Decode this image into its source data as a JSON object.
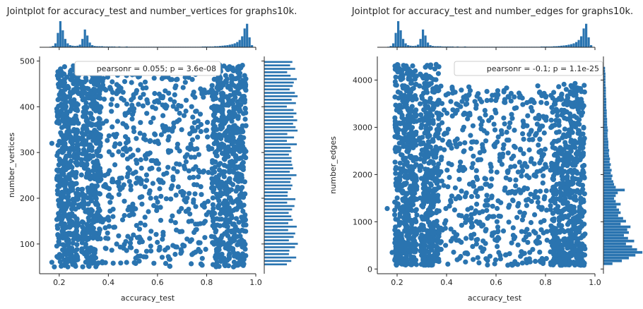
{
  "chart_data": [
    {
      "type": "scatter",
      "subtype": "jointplot",
      "title": "Jointplot for accuracy_test and number_vertices for graphs10k.",
      "xlabel": "accuracy_test",
      "ylabel": "number_vertices",
      "xlim": [
        0.12,
        1.0
      ],
      "ylim": [
        35,
        510
      ],
      "xticks": [
        "0.2",
        "0.4",
        "0.6",
        "0.8",
        "1.0"
      ],
      "yticks": [
        "100",
        "200",
        "300",
        "400",
        "500"
      ],
      "annotation": "pearsonr = 0.055; p = 3.6e-08",
      "color": "#2a74b0",
      "marginal_x_hist": {
        "x_start": 0.16,
        "bin_width": 0.01,
        "heights": [
          0.02,
          0.05,
          0.15,
          0.55,
          1.0,
          0.65,
          0.32,
          0.15,
          0.08,
          0.06,
          0.05,
          0.06,
          0.1,
          0.32,
          0.68,
          0.45,
          0.18,
          0.08,
          0.05,
          0.04,
          0.04,
          0.04,
          0.03,
          0.03,
          0.03,
          0.03,
          0.03,
          0.02,
          0.03,
          0.02,
          0.02,
          0.03,
          0.02,
          0.02,
          0.02,
          0.02,
          0.02,
          0.02,
          0.02,
          0.02,
          0.02,
          0.02,
          0.02,
          0.02,
          0.02,
          0.02,
          0.02,
          0.02,
          0.02,
          0.02,
          0.02,
          0.02,
          0.02,
          0.02,
          0.02,
          0.02,
          0.02,
          0.02,
          0.02,
          0.02,
          0.02,
          0.02,
          0.03,
          0.03,
          0.03,
          0.03,
          0.03,
          0.04,
          0.04,
          0.05,
          0.06,
          0.07,
          0.08,
          0.1,
          0.12,
          0.15,
          0.2,
          0.28,
          0.42,
          0.72,
          0.9,
          0.38,
          0.08
        ]
      },
      "marginal_y_hist": {
        "y_start": 50,
        "bin_width": 7.5,
        "min": 0.55,
        "max": 0.82,
        "bars": 60
      }
    },
    {
      "type": "scatter",
      "subtype": "jointplot",
      "title": "Jointplot for accuracy_test and number_edges for graphs10k.",
      "xlabel": "accuracy_test",
      "ylabel": "number_edges",
      "xlim": [
        0.12,
        1.0
      ],
      "ylim": [
        -100,
        4500
      ],
      "xticks": [
        "0.2",
        "0.4",
        "0.6",
        "0.8",
        "1.0"
      ],
      "yticks": [
        "0",
        "1000",
        "2000",
        "3000",
        "4000"
      ],
      "annotation": "pearsonr = -0.1; p = 1.1e-25",
      "color": "#2a74b0",
      "marginal_x_hist": {
        "x_start": 0.16,
        "bin_width": 0.01,
        "heights": [
          0.02,
          0.05,
          0.15,
          0.55,
          1.0,
          0.65,
          0.32,
          0.15,
          0.08,
          0.06,
          0.05,
          0.06,
          0.1,
          0.32,
          0.68,
          0.45,
          0.18,
          0.08,
          0.05,
          0.04,
          0.04,
          0.04,
          0.03,
          0.03,
          0.03,
          0.03,
          0.03,
          0.02,
          0.03,
          0.02,
          0.02,
          0.03,
          0.02,
          0.02,
          0.02,
          0.02,
          0.02,
          0.02,
          0.02,
          0.02,
          0.02,
          0.02,
          0.02,
          0.02,
          0.02,
          0.02,
          0.02,
          0.02,
          0.02,
          0.02,
          0.02,
          0.02,
          0.02,
          0.02,
          0.02,
          0.02,
          0.02,
          0.02,
          0.02,
          0.02,
          0.02,
          0.02,
          0.03,
          0.03,
          0.03,
          0.03,
          0.03,
          0.04,
          0.04,
          0.05,
          0.06,
          0.07,
          0.08,
          0.1,
          0.12,
          0.15,
          0.2,
          0.28,
          0.42,
          0.72,
          0.9,
          0.38,
          0.08
        ]
      },
      "marginal_y_hist": {
        "y_start": 80,
        "bin_width": 60,
        "heights": [
          0.22,
          0.45,
          0.62,
          0.78,
          0.95,
          0.82,
          0.7,
          0.55,
          0.75,
          0.6,
          0.5,
          0.62,
          0.58,
          0.66,
          0.42,
          0.55,
          0.48,
          0.36,
          0.42,
          0.38,
          0.32,
          0.42,
          0.3,
          0.26,
          0.3,
          0.35,
          0.52,
          0.3,
          0.26,
          0.24,
          0.2,
          0.22,
          0.18,
          0.2,
          0.16,
          0.18,
          0.15,
          0.16,
          0.14,
          0.13,
          0.14,
          0.12,
          0.12,
          0.12,
          0.11,
          0.1,
          0.1,
          0.11,
          0.1,
          0.09,
          0.09,
          0.09,
          0.08,
          0.08,
          0.08,
          0.07,
          0.07,
          0.07,
          0.07,
          0.06,
          0.06,
          0.06,
          0.06,
          0.05,
          0.05,
          0.05,
          0.05,
          0.05,
          0.04,
          0.04
        ]
      }
    }
  ]
}
